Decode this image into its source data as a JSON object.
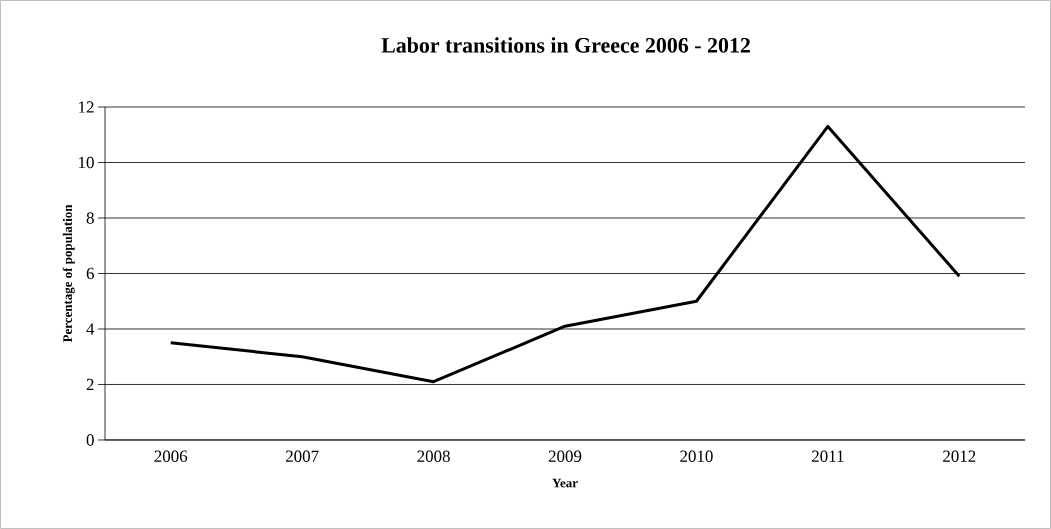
{
  "chart_data": {
    "type": "line",
    "title": "Labor transitions in Greece 2006 - 2012",
    "xlabel": "Year",
    "ylabel": "Percentage of population",
    "categories": [
      "2006",
      "2007",
      "2008",
      "2009",
      "2010",
      "2011",
      "2012"
    ],
    "values": [
      3.5,
      3.0,
      2.1,
      4.1,
      5.0,
      11.3,
      5.9
    ],
    "color": "#000000",
    "ylim": [
      0,
      12
    ],
    "yticks": [
      0,
      2,
      4,
      6,
      8,
      10,
      12
    ],
    "grid": "y"
  }
}
